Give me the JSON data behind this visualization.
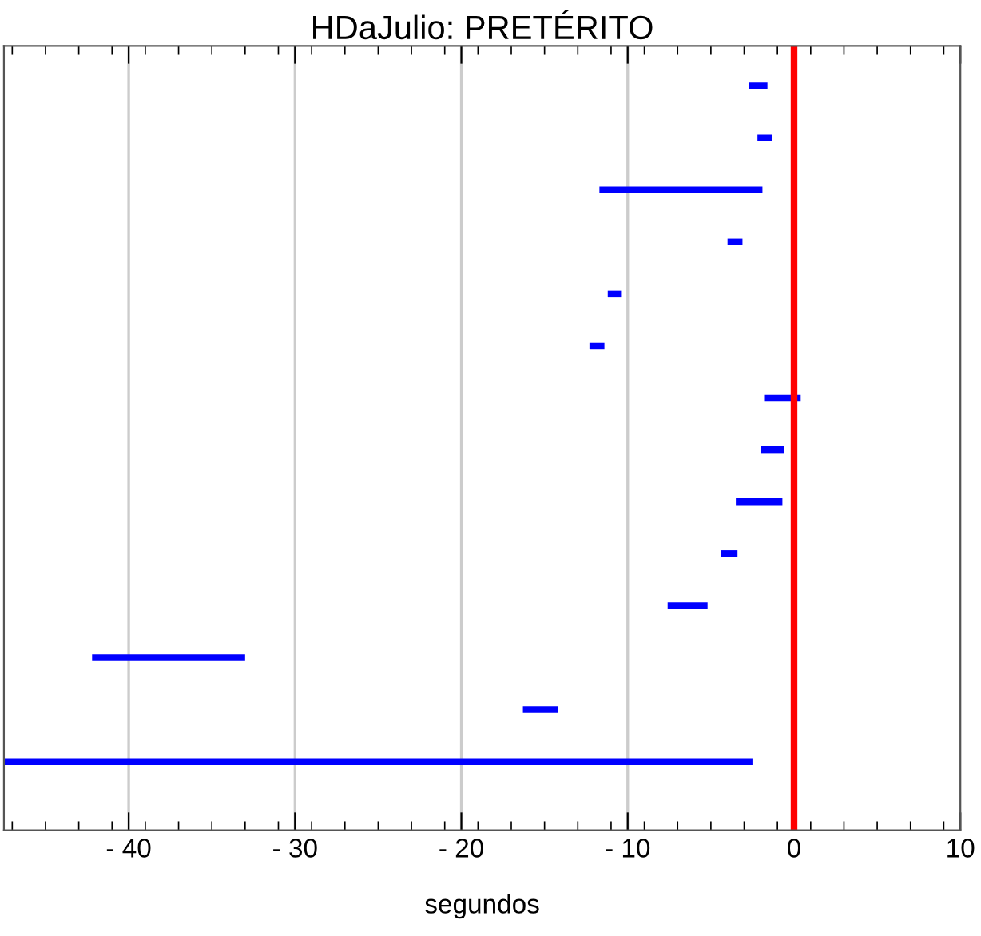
{
  "chart_data": {
    "type": "bar",
    "orientation": "horizontal",
    "title": "HDaJulio: PRETÉRITO",
    "xlabel": "segundos",
    "categories": [
      null,
      null,
      null,
      null,
      null,
      null,
      null,
      null,
      null,
      null,
      null,
      null,
      null,
      null
    ],
    "base": [
      -2.7,
      -2.2,
      -11.7,
      -4.0,
      -11.2,
      -12.3,
      -1.8,
      -2.0,
      -3.5,
      -4.4,
      -7.6,
      -42.2,
      -16.3,
      -47.5
    ],
    "values": [
      1.1,
      0.9,
      9.8,
      0.9,
      0.8,
      0.9,
      2.2,
      1.4,
      2.8,
      1.0,
      2.4,
      9.2,
      2.1,
      45.0
    ],
    "color": "#0000ff",
    "xlim": [
      -47.5,
      10
    ],
    "xticks": [
      {
        "value": -40,
        "label": "- 40"
      },
      {
        "value": -30,
        "label": "- 30"
      },
      {
        "value": -20,
        "label": "- 20"
      },
      {
        "value": -10,
        "label": "- 10"
      },
      0,
      10
    ],
    "ref_lines": [
      {
        "axis": "x",
        "value": 0,
        "color": "#ff0000"
      }
    ],
    "grid": "x",
    "tick_labels": "x"
  }
}
